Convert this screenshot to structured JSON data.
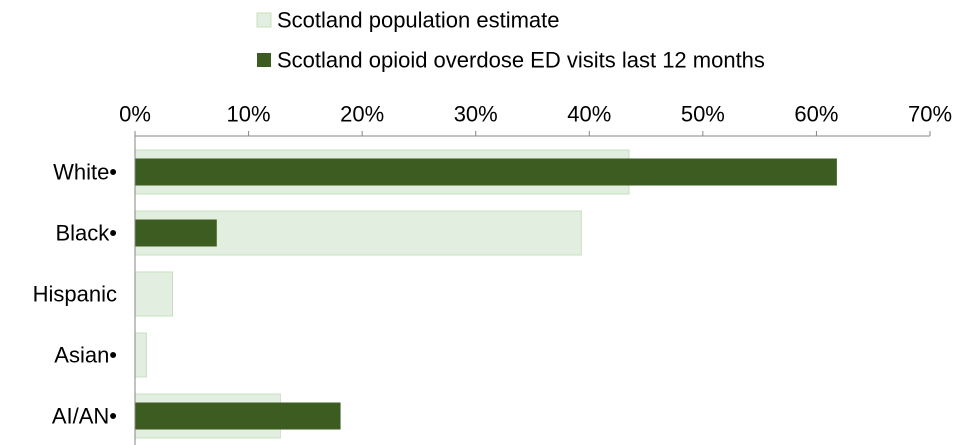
{
  "chart_data": {
    "type": "bar",
    "orientation": "horizontal",
    "x_axis_position": "top",
    "categories": [
      "White•",
      "Black•",
      "Hispanic",
      "Asian•",
      "AI/AN•"
    ],
    "series": [
      {
        "name": "Scotland population estimate",
        "values": [
          43.5,
          39.3,
          3.3,
          1.0,
          12.8
        ],
        "color": "#e2efe0",
        "border_color": "#c6e0c1"
      },
      {
        "name": "Scotland opioid overdose ED visits last 12 months",
        "values": [
          61.8,
          7.2,
          null,
          null,
          18.1
        ],
        "color": "#3d5c22"
      }
    ],
    "xlim": [
      0,
      70
    ],
    "xticks": [
      0,
      10,
      20,
      30,
      40,
      50,
      60,
      70
    ],
    "tick_labels": [
      "0%",
      "10%",
      "20%",
      "30%",
      "40%",
      "50%",
      "60%",
      "70%"
    ],
    "legend": "top",
    "grid": false
  }
}
